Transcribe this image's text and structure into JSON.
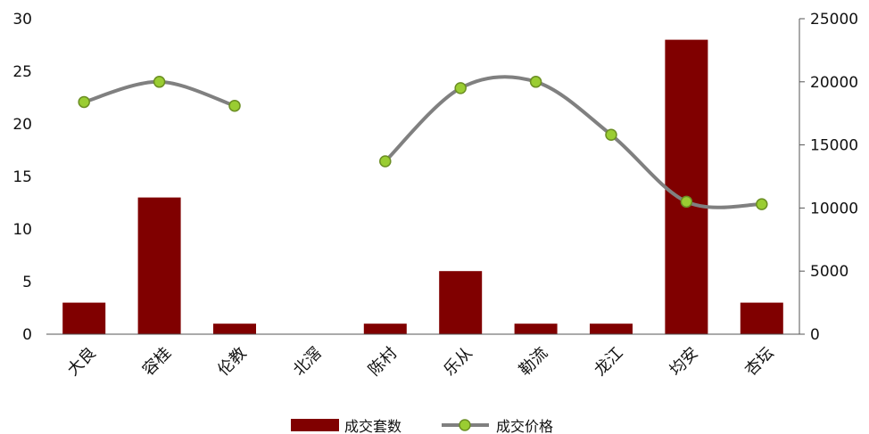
{
  "chart_data": {
    "type": "bar",
    "categories": [
      "大良",
      "容桂",
      "伦教",
      "北滘",
      "陈村",
      "乐从",
      "勒流",
      "龙江",
      "均安",
      "杏坛"
    ],
    "series": [
      {
        "name": "成交套数",
        "type": "bar",
        "axis": "left",
        "color": "#800000",
        "values": [
          3,
          13,
          1,
          0,
          1,
          6,
          1,
          1,
          28,
          3
        ]
      },
      {
        "name": "成交价格",
        "type": "line",
        "axis": "right",
        "color": "#808080",
        "marker_color": "#9acd32",
        "values": [
          18400,
          20000,
          18100,
          null,
          13700,
          19500,
          20000,
          15800,
          10500,
          10300
        ]
      }
    ],
    "y_left": {
      "ylim": [
        0,
        30
      ],
      "ticks": [
        "0",
        "5",
        "10",
        "15",
        "20",
        "25",
        "30"
      ]
    },
    "y_right": {
      "ylim": [
        0,
        25000
      ],
      "ticks": [
        "0",
        "5000",
        "10000",
        "15000",
        "20000",
        "25000"
      ]
    },
    "legend": {
      "position": "bottom",
      "items": [
        "成交套数",
        "成交价格"
      ]
    }
  }
}
